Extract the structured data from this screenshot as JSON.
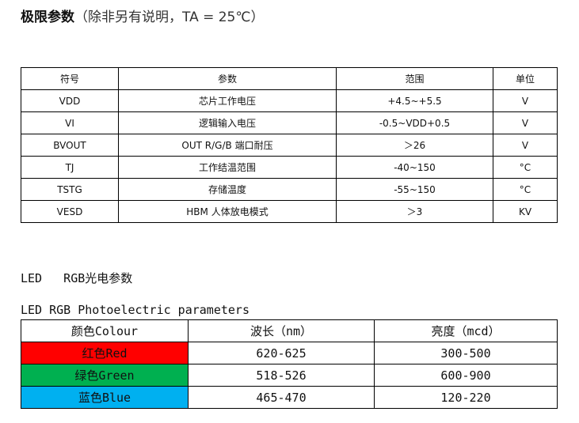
{
  "title": {
    "bold": "极限参数",
    "rest": "（除非另有说明，TA = 25℃）"
  },
  "limits_table": {
    "headers": [
      "符号",
      "参数",
      "范围",
      "单位"
    ],
    "rows": [
      [
        "VDD",
        "芯片工作电压",
        "+4.5~+5.5",
        "V"
      ],
      [
        "VI",
        "逻辑输入电压",
        "-0.5~VDD+0.5",
        "V"
      ],
      [
        "BVOUT",
        "OUT R/G/B 端口耐压",
        "＞26",
        "V"
      ],
      [
        "TJ",
        "工作结温范围",
        "-40~150",
        "°C"
      ],
      [
        "TSTG",
        "存储温度",
        "-55~150",
        "°C"
      ],
      [
        "VESD",
        "HBM 人体放电模式",
        "＞3",
        "KV"
      ]
    ]
  },
  "section_heading": "LED   RGB光电参数",
  "section_subheading": "LED RGB Photoelectric parameters",
  "led_table": {
    "headers": [
      "颜色Colour",
      "波长（nm）",
      "亮度（mcd）"
    ],
    "rows": [
      {
        "color": "红色Red",
        "bg": "#ff0000",
        "wavelength": "620-625",
        "brightness": "300-500"
      },
      {
        "color": "绿色Green",
        "bg": "#00b050",
        "wavelength": "518-526",
        "brightness": "600-900"
      },
      {
        "color": "蓝色Blue",
        "bg": "#00b0f0",
        "wavelength": "465-470",
        "brightness": "120-220"
      }
    ]
  }
}
